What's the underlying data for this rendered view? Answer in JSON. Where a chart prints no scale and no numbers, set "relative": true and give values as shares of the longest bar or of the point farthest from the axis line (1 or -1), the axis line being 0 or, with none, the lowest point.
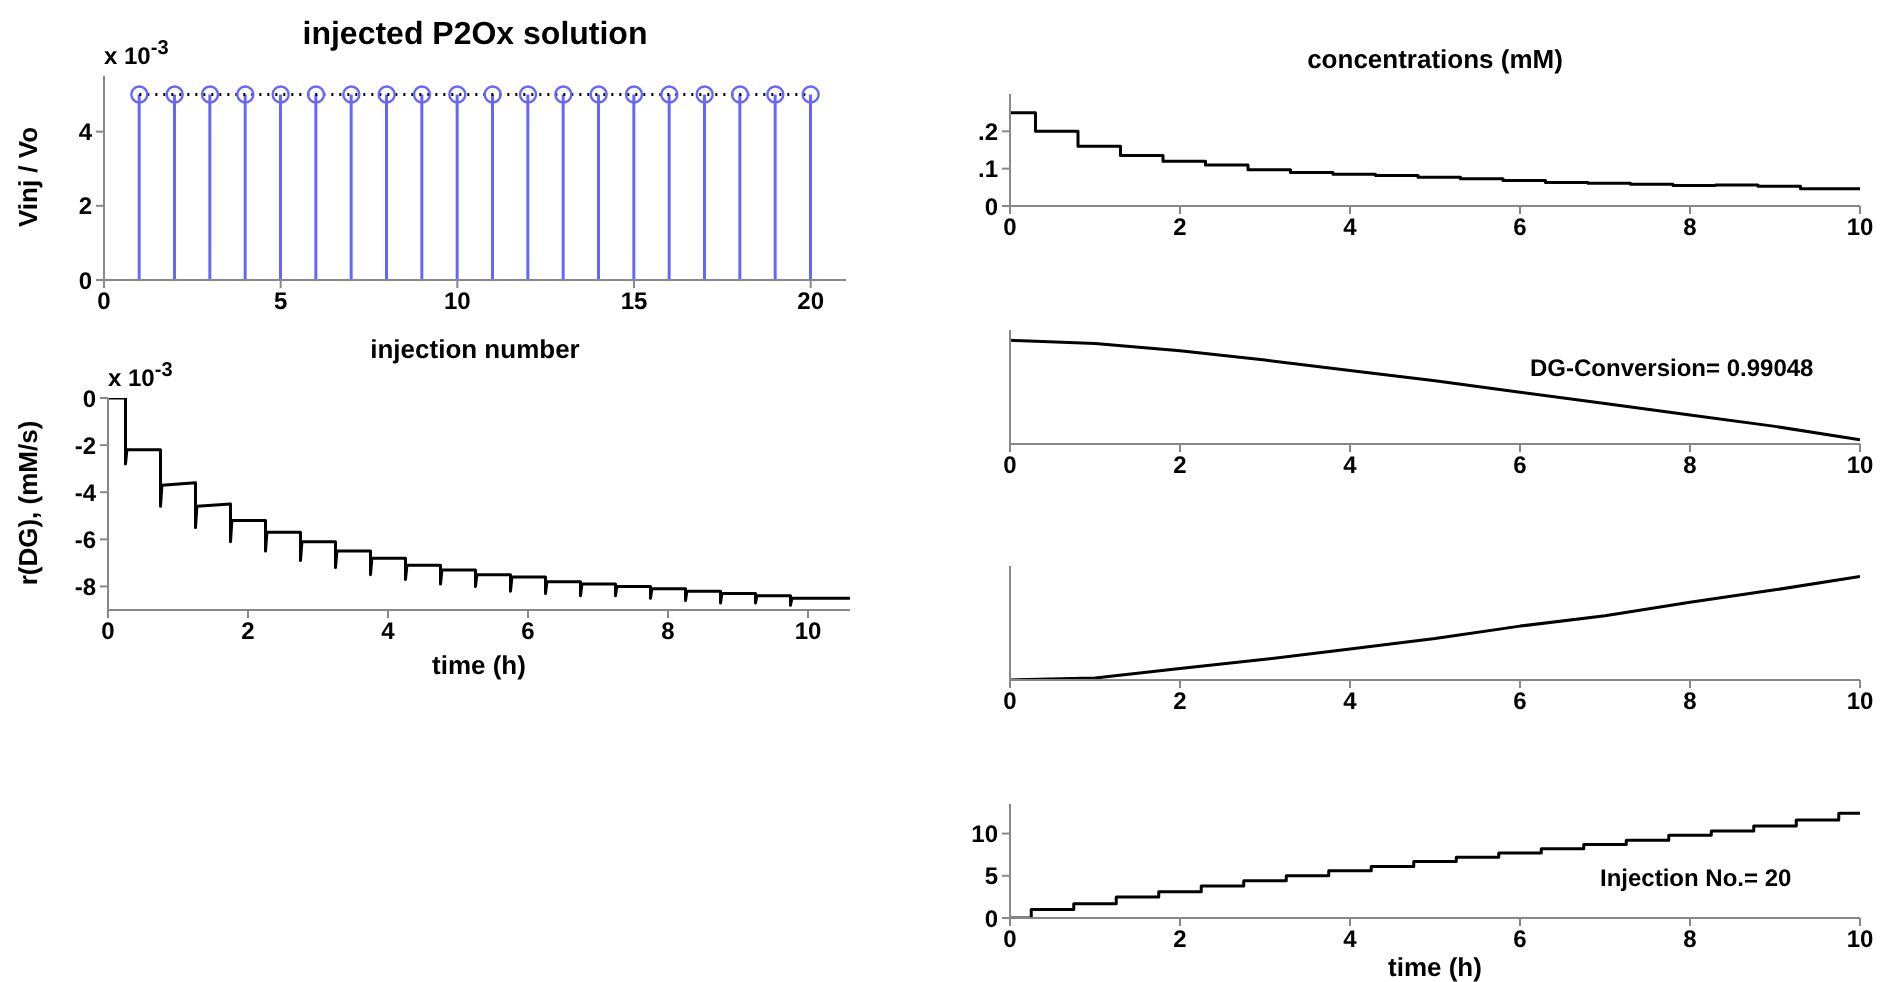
{
  "chart_data": [
    {
      "type": "lollipop",
      "title": "injected P2Ox solution",
      "xlabel": "injection number",
      "ylabel": "Vinj / Vo",
      "annotations": [
        "x 10$^{-3}$"
      ],
      "x": [
        1,
        2,
        3,
        4,
        5,
        6,
        7,
        8,
        9,
        10,
        11,
        12,
        13,
        14,
        15,
        16,
        17,
        18,
        19,
        20
      ],
      "series": [
        {
          "color": "#6666ff",
          "marker": "circle",
          "values": [
            5,
            5,
            5,
            5,
            5,
            5,
            5,
            5,
            5,
            5,
            5,
            5,
            5,
            5,
            5,
            5,
            5,
            5,
            5,
            5
          ]
        },
        {
          "type": "line",
          "color": "#000000",
          "marker": "none",
          "line_style": "dotted",
          "values": [
            5,
            5,
            5,
            5,
            5,
            5,
            5,
            5,
            5,
            5,
            5,
            5,
            5,
            5,
            5,
            5,
            5,
            5,
            5,
            5
          ]
        }
      ],
      "xlim": [
        0,
        21
      ],
      "xticks": [
        0,
        5,
        10,
        15,
        20
      ],
      "ylim": [
        0,
        5.5
      ],
      "yticks": [
        0,
        2,
        4
      ]
    },
    {
      "type": "line",
      "xlabel": "time (h)",
      "ylabel": "r(DG), (mM/s)",
      "annotations": [
        "x 10$^{-3}$"
      ],
      "x": [
        0,
        0.25,
        0.25,
        0.27,
        0.75,
        0.75,
        0.77,
        1.25,
        1.25,
        1.27,
        1.75,
        1.75,
        1.77,
        2.25,
        2.25,
        2.27,
        2.75,
        2.75,
        2.77,
        3.25,
        3.25,
        3.27,
        3.75,
        3.75,
        3.77,
        4.25,
        4.25,
        4.27,
        4.75,
        4.75,
        4.77,
        5.25,
        5.25,
        5.27,
        5.75,
        5.75,
        5.77,
        6.25,
        6.25,
        6.27,
        6.75,
        6.75,
        6.77,
        7.25,
        7.25,
        7.27,
        7.75,
        7.75,
        7.77,
        8.25,
        8.25,
        8.27,
        8.75,
        8.75,
        8.77,
        9.25,
        9.25,
        9.27,
        9.75,
        9.75,
        9.77,
        10.6
      ],
      "series": [
        {
          "color": "#000000",
          "values": [
            0,
            0,
            -2.8,
            -2.2,
            -2.2,
            -4.6,
            -3.7,
            -3.6,
            -5.5,
            -4.6,
            -4.5,
            -6.1,
            -5.2,
            -5.2,
            -6.5,
            -5.7,
            -5.7,
            -6.9,
            -6.1,
            -6.1,
            -7.2,
            -6.5,
            -6.5,
            -7.5,
            -6.8,
            -6.8,
            -7.7,
            -7.1,
            -7.1,
            -7.9,
            -7.3,
            -7.3,
            -8.0,
            -7.5,
            -7.5,
            -8.2,
            -7.6,
            -7.6,
            -8.3,
            -7.8,
            -7.8,
            -8.4,
            -7.9,
            -7.9,
            -8.4,
            -8.0,
            -8.0,
            -8.5,
            -8.1,
            -8.1,
            -8.6,
            -8.2,
            -8.2,
            -8.7,
            -8.3,
            -8.3,
            -8.7,
            -8.4,
            -8.4,
            -8.8,
            -8.5,
            -8.5
          ]
        }
      ],
      "xlim": [
        0,
        10.6
      ],
      "xticks": [
        0,
        2,
        4,
        6,
        8,
        10
      ],
      "ylim": [
        -9,
        0
      ],
      "yticks": [
        -8,
        -6,
        -4,
        -2,
        0
      ]
    },
    {
      "type": "step",
      "title": "concentrations (mM)",
      "x": [
        0,
        0.3,
        0.8,
        1.3,
        1.8,
        2.3,
        2.8,
        3.3,
        3.8,
        4.3,
        4.8,
        5.3,
        5.8,
        6.3,
        6.8,
        7.3,
        7.8,
        8.3,
        8.8,
        9.3,
        10
      ],
      "series": [
        {
          "color": "#000000",
          "values": [
            0.25,
            0.2,
            0.16,
            0.135,
            0.12,
            0.11,
            0.097,
            0.09,
            0.085,
            0.082,
            0.077,
            0.073,
            0.068,
            0.063,
            0.061,
            0.058,
            0.055,
            0.056,
            0.053,
            0.046,
            0.046
          ]
        }
      ],
      "xlim": [
        0,
        10
      ],
      "xticks": [
        0,
        2,
        4,
        6,
        8,
        10
      ],
      "ylim": [
        0,
        0.3
      ],
      "yticks": [
        0,
        {
          "value": 0.1,
          "label": ".1"
        },
        {
          "value": 0.2,
          "label": ".2"
        }
      ]
    },
    {
      "type": "line",
      "annotations": [
        "DG-Conversion= 0.99048"
      ],
      "x": [
        0,
        1,
        2,
        3,
        4,
        5,
        6,
        7,
        8,
        9,
        10
      ],
      "series": [
        {
          "color": "#000000",
          "values": [
            1,
            0.97,
            0.9,
            0.81,
            0.71,
            0.61,
            0.5,
            0.39,
            0.28,
            0.17,
            0.04
          ]
        }
      ],
      "relative": true,
      "xlim": [
        0,
        10
      ],
      "xticks": [
        0,
        2,
        4,
        6,
        8,
        10
      ]
    },
    {
      "type": "line",
      "x": [
        0,
        1,
        2,
        3,
        4,
        5,
        6,
        7,
        8,
        9,
        10
      ],
      "series": [
        {
          "color": "#000000",
          "values": [
            0,
            0.02,
            0.11,
            0.2,
            0.3,
            0.4,
            0.52,
            0.62,
            0.75,
            0.87,
            1
          ]
        }
      ],
      "relative": true,
      "xlim": [
        0,
        10
      ],
      "xticks": [
        0,
        2,
        4,
        6,
        8,
        10
      ]
    },
    {
      "type": "step",
      "xlabel": "time (h)",
      "annotations": [
        "Injection No.= 20"
      ],
      "x": [
        0,
        0.25,
        0.75,
        1.25,
        1.75,
        2.25,
        2.75,
        3.25,
        3.75,
        4.25,
        4.75,
        5.25,
        5.75,
        6.25,
        6.75,
        7.25,
        7.75,
        8.25,
        8.75,
        9.25,
        9.75,
        10
      ],
      "series": [
        {
          "color": "#000000",
          "values": [
            0,
            1.0,
            1.7,
            2.5,
            3.1,
            3.8,
            4.4,
            5.0,
            5.6,
            6.1,
            6.7,
            7.2,
            7.7,
            8.2,
            8.7,
            9.2,
            9.8,
            10.3,
            10.9,
            11.6,
            12.4,
            12.4
          ]
        }
      ],
      "xlim": [
        0,
        10
      ],
      "xticks": [
        0,
        2,
        4,
        6,
        8,
        10
      ],
      "ylim": [
        0,
        13.5
      ],
      "yticks": [
        0,
        5,
        10
      ]
    }
  ]
}
